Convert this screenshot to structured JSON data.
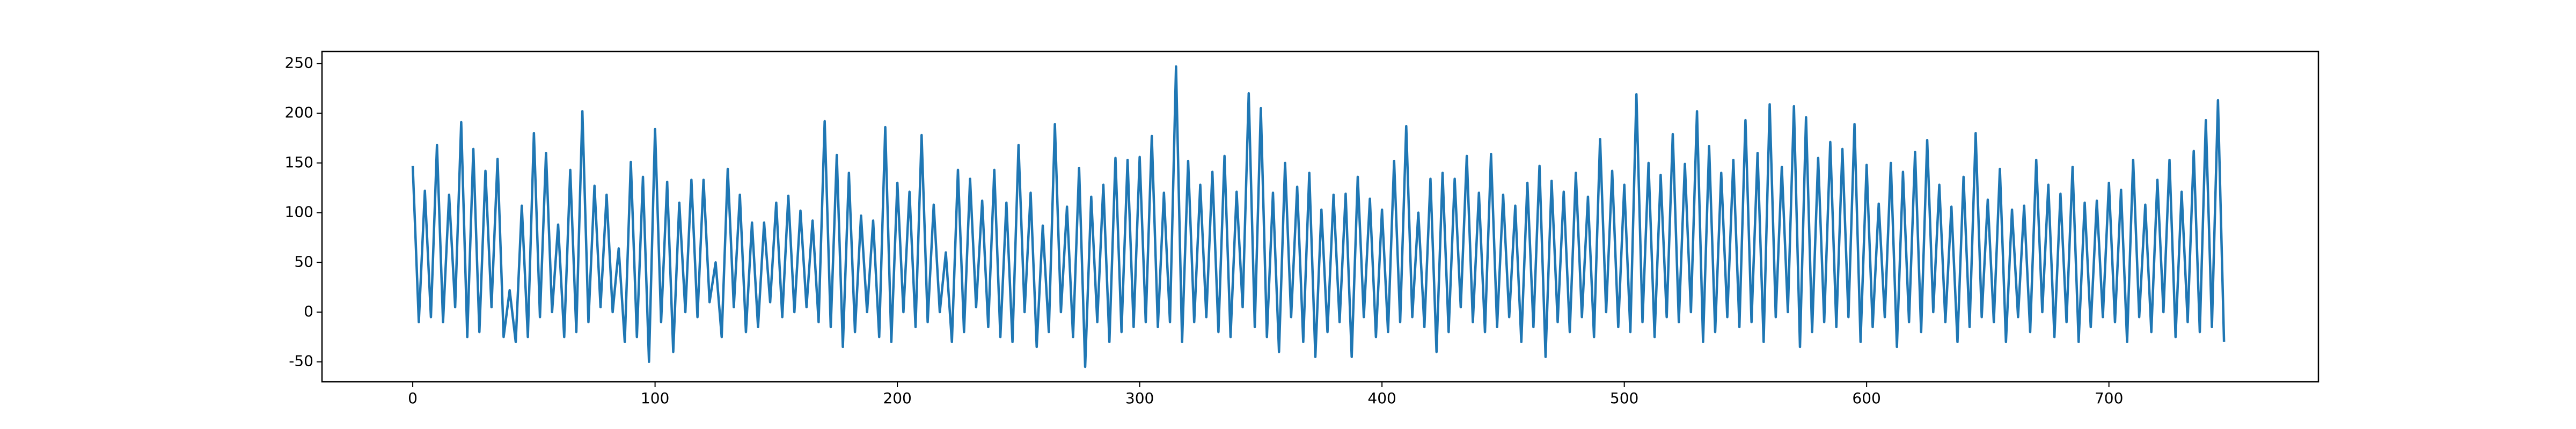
{
  "chart_data": {
    "type": "line",
    "color": "#1f77b4",
    "x": [
      0,
      2.5,
      5,
      7.5,
      10,
      12.5,
      15,
      17.5,
      20,
      22.5,
      25,
      27.5,
      30,
      32.5,
      35,
      37.5,
      40,
      42.5,
      45,
      47.5,
      50,
      52.5,
      55,
      57.5,
      60,
      62.5,
      65,
      67.5,
      70,
      72.5,
      75,
      77.5,
      80,
      82.5,
      85,
      87.5,
      90,
      92.5,
      95,
      97.5,
      100,
      102.5,
      105,
      107.5,
      110,
      112.5,
      115,
      117.5,
      120,
      122.5,
      125,
      127.5,
      130,
      132.5,
      135,
      137.5,
      140,
      142.5,
      145,
      147.5,
      150,
      152.5,
      155,
      157.5,
      160,
      162.5,
      165,
      167.5,
      170,
      172.5,
      175,
      177.5,
      180,
      182.5,
      185,
      187.5,
      190,
      192.5,
      195,
      197.5,
      200,
      202.5,
      205,
      207.5,
      210,
      212.5,
      215,
      217.5,
      220,
      222.5,
      225,
      227.5,
      230,
      232.5,
      235,
      237.5,
      240,
      242.5,
      245,
      247.5,
      250,
      252.5,
      255,
      257.5,
      260,
      262.5,
      265,
      267.5,
      270,
      272.5,
      275,
      277.5,
      280,
      282.5,
      285,
      287.5,
      290,
      292.5,
      295,
      297.5,
      300,
      302.5,
      305,
      307.5,
      310,
      312.5,
      315,
      317.5,
      320,
      322.5,
      325,
      327.5,
      330,
      332.5,
      335,
      337.5,
      340,
      342.5,
      345,
      347.5,
      350,
      352.5,
      355,
      357.5,
      360,
      362.5,
      365,
      367.5,
      370,
      372.5,
      375,
      377.5,
      380,
      382.5,
      385,
      387.5,
      390,
      392.5,
      395,
      397.5,
      400,
      402.5,
      405,
      407.5,
      410,
      412.5,
      415,
      417.5,
      420,
      422.5,
      425,
      427.5,
      430,
      432.5,
      435,
      437.5,
      440,
      442.5,
      445,
      447.5,
      450,
      452.5,
      455,
      457.5,
      460,
      462.5,
      465,
      467.5,
      470,
      472.5,
      475,
      477.5,
      480,
      482.5,
      485,
      487.5,
      490,
      492.5,
      495,
      497.5,
      500,
      502.5,
      505,
      507.5,
      510,
      512.5,
      515,
      517.5,
      520,
      522.5,
      525,
      527.5,
      530,
      532.5,
      535,
      537.5,
      540,
      542.5,
      545,
      547.5,
      550,
      552.5,
      555,
      557.5,
      560,
      562.5,
      565,
      567.5,
      570,
      572.5,
      575,
      577.5,
      580,
      582.5,
      585,
      587.5,
      590,
      592.5,
      595,
      597.5,
      600,
      602.5,
      605,
      607.5,
      610,
      612.5,
      615,
      617.5,
      620,
      622.5,
      625,
      627.5,
      630,
      632.5,
      635,
      637.5,
      640,
      642.5,
      645,
      647.5,
      650,
      652.5,
      655,
      657.5,
      660,
      662.5,
      665,
      667.5,
      670,
      672.5,
      675,
      677.5,
      680,
      682.5,
      685,
      687.5,
      690,
      692.5,
      695,
      697.5,
      700,
      702.5,
      705,
      707.5,
      710,
      712.5,
      715,
      717.5,
      720,
      722.5,
      725,
      727.5,
      730,
      732.5,
      735,
      737.5,
      740,
      742.5,
      745,
      747.5
    ],
    "values": [
      147,
      -10,
      122,
      -5,
      168,
      -10,
      118,
      5,
      191,
      -25,
      164,
      -20,
      142,
      5,
      154,
      -25,
      22,
      -30,
      107,
      -25,
      180,
      -5,
      160,
      0,
      88,
      -25,
      143,
      -20,
      202,
      -10,
      127,
      5,
      118,
      0,
      64,
      -30,
      151,
      -25,
      136,
      -50,
      184,
      -10,
      131,
      -40,
      110,
      0,
      133,
      -5,
      133,
      10,
      50,
      -25,
      144,
      5,
      118,
      -20,
      90,
      -15,
      90,
      10,
      110,
      -5,
      117,
      0,
      102,
      5,
      92,
      -10,
      192,
      -15,
      158,
      -35,
      140,
      -20,
      97,
      0,
      92,
      -25,
      186,
      -30,
      130,
      0,
      121,
      -15,
      178,
      -10,
      108,
      0,
      60,
      -30,
      143,
      -20,
      134,
      5,
      112,
      -15,
      143,
      -25,
      110,
      -30,
      168,
      0,
      120,
      -35,
      87,
      -20,
      189,
      0,
      106,
      -25,
      145,
      -55,
      116,
      -10,
      128,
      -30,
      155,
      -20,
      153,
      -15,
      156,
      -10,
      177,
      -15,
      120,
      -10,
      247,
      -30,
      152,
      -10,
      128,
      -5,
      141,
      -20,
      157,
      -25,
      121,
      5,
      220,
      -15,
      205,
      -25,
      120,
      -40,
      150,
      -5,
      126,
      -30,
      140,
      -45,
      103,
      -20,
      118,
      -10,
      119,
      -45,
      136,
      -5,
      114,
      -25,
      103,
      -20,
      152,
      -10,
      187,
      -5,
      100,
      -15,
      134,
      -40,
      140,
      -20,
      134,
      5,
      157,
      -10,
      120,
      -20,
      159,
      -15,
      118,
      -5,
      107,
      -30,
      130,
      -15,
      147,
      -45,
      132,
      -10,
      121,
      -20,
      140,
      -5,
      116,
      -25,
      174,
      0,
      142,
      -15,
      128,
      -20,
      219,
      -10,
      150,
      -25,
      138,
      -5,
      179,
      -10,
      149,
      0,
      202,
      -30,
      167,
      -20,
      140,
      -5,
      153,
      -15,
      193,
      -10,
      160,
      -30,
      209,
      -5,
      146,
      0,
      207,
      -35,
      196,
      -20,
      155,
      -10,
      171,
      -15,
      164,
      -5,
      189,
      -30,
      148,
      -15,
      109,
      -5,
      150,
      -35,
      141,
      -10,
      161,
      -20,
      173,
      0,
      128,
      -10,
      106,
      -30,
      136,
      -15,
      180,
      -5,
      113,
      -10,
      144,
      -30,
      103,
      -5,
      107,
      -20,
      153,
      0,
      128,
      -25,
      119,
      -10,
      146,
      -30,
      110,
      -15,
      112,
      -5,
      130,
      -10,
      123,
      -30,
      153,
      -5,
      108,
      -20,
      133,
      0,
      153,
      -25,
      121,
      -10,
      162,
      -20,
      193,
      -15,
      213,
      -30
    ],
    "xlim": [
      -37.45,
      786.45
    ],
    "xticks": [
      0,
      100,
      200,
      300,
      400,
      500,
      600,
      700
    ],
    "ylim": [
      -70.1,
      262.1
    ],
    "yticks": [
      -50,
      0,
      50,
      100,
      150,
      200,
      250
    ]
  }
}
